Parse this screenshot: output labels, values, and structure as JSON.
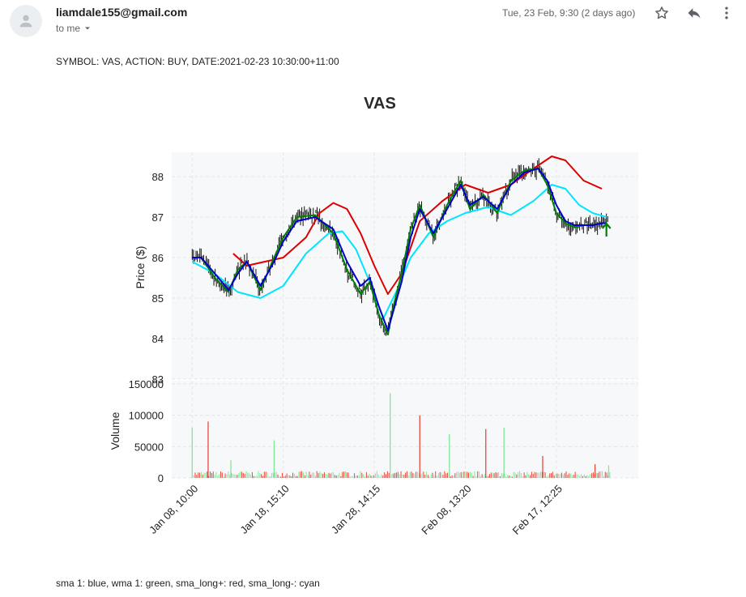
{
  "email": {
    "sender": "liamdale155@gmail.com",
    "recipient_label": "to me",
    "date": "Tue, 23 Feb, 9:30 (2 days ago)",
    "body_line": "SYMBOL: VAS, ACTION: BUY, DATE:2021-02-23 10:30:00+11:00",
    "legend_note": "sma 1: blue, wma 1: green, sma_long+: red, sma_long-: cyan"
  },
  "icons": {
    "avatar": "person-icon",
    "dropdown": "chevron-down-icon",
    "star": "star-icon",
    "reply": "reply-icon",
    "more": "more-vert-icon"
  },
  "chart_data": {
    "type": "line",
    "title": "VAS",
    "price_axis": {
      "label": "Price ($)",
      "range": [
        83,
        88.6
      ],
      "ticks": [
        83,
        84,
        85,
        86,
        87,
        88
      ]
    },
    "volume_axis": {
      "label": "Volume",
      "range": [
        0,
        155000
      ],
      "ticks": [
        0,
        50000,
        100000,
        150000
      ]
    },
    "x_ticks": [
      "Jan 08, 10:00",
      "Jan 18, 15:10",
      "Jan 28, 14:15",
      "Feb 08, 13:20",
      "Feb 17, 12:25"
    ],
    "x_tick_positions": [
      0.0,
      0.2,
      0.4,
      0.6,
      0.8
    ],
    "x_range": [
      -0.045,
      0.98
    ],
    "grid": true,
    "buy_marker": {
      "x": 0.91,
      "y": 86.6,
      "color": "#008000"
    },
    "series": [
      {
        "name": "sma 1",
        "color": "#0000cc",
        "x": [
          0.0,
          0.02,
          0.05,
          0.08,
          0.1,
          0.12,
          0.15,
          0.18,
          0.2,
          0.23,
          0.27,
          0.31,
          0.34,
          0.37,
          0.39,
          0.41,
          0.43,
          0.44,
          0.46,
          0.48,
          0.5,
          0.53,
          0.56,
          0.59,
          0.61,
          0.64,
          0.67,
          0.7,
          0.73,
          0.76,
          0.78,
          0.8,
          0.82,
          0.84,
          0.86,
          0.88,
          0.9,
          0.91
        ],
        "y": [
          86.0,
          86.0,
          85.6,
          85.2,
          85.6,
          85.9,
          85.3,
          85.9,
          86.4,
          86.9,
          87.0,
          86.7,
          85.9,
          85.3,
          85.5,
          84.8,
          84.2,
          84.6,
          85.4,
          86.5,
          87.2,
          86.6,
          87.2,
          87.8,
          87.3,
          87.5,
          87.2,
          87.8,
          88.1,
          88.2,
          87.9,
          87.3,
          86.9,
          86.8,
          86.8,
          86.8,
          86.85,
          86.85
        ]
      },
      {
        "name": "wma 1",
        "color": "#008000",
        "x": [
          0.0,
          0.02,
          0.05,
          0.08,
          0.1,
          0.12,
          0.15,
          0.18,
          0.2,
          0.23,
          0.27,
          0.31,
          0.34,
          0.37,
          0.39,
          0.41,
          0.43,
          0.44,
          0.46,
          0.48,
          0.5,
          0.53,
          0.56,
          0.59,
          0.61,
          0.64,
          0.67,
          0.7,
          0.73,
          0.76,
          0.78,
          0.8,
          0.82,
          0.84,
          0.86,
          0.88,
          0.9,
          0.91
        ],
        "y": [
          86.0,
          86.0,
          85.5,
          85.15,
          85.7,
          85.9,
          85.2,
          86.0,
          86.5,
          87.0,
          87.05,
          86.6,
          85.7,
          85.1,
          85.4,
          84.6,
          84.1,
          84.7,
          85.6,
          86.7,
          87.3,
          86.5,
          87.3,
          87.9,
          87.2,
          87.55,
          87.1,
          87.9,
          88.15,
          88.2,
          87.8,
          87.1,
          86.85,
          86.75,
          86.8,
          86.8,
          86.85,
          86.85
        ]
      },
      {
        "name": "sma_long+",
        "color": "#dd0000",
        "x": [
          0.09,
          0.12,
          0.16,
          0.2,
          0.25,
          0.28,
          0.31,
          0.34,
          0.37,
          0.4,
          0.43,
          0.46,
          0.5,
          0.55,
          0.6,
          0.65,
          0.7,
          0.75,
          0.79,
          0.82,
          0.86,
          0.9
        ],
        "y": [
          86.1,
          85.8,
          85.9,
          86.0,
          86.5,
          87.1,
          87.35,
          87.2,
          86.6,
          85.8,
          85.1,
          85.6,
          86.9,
          87.4,
          87.8,
          87.6,
          87.8,
          88.2,
          88.5,
          88.4,
          87.9,
          87.7
        ]
      },
      {
        "name": "sma_long-",
        "color": "#00e5ff",
        "x": [
          0.0,
          0.05,
          0.1,
          0.15,
          0.2,
          0.25,
          0.3,
          0.33,
          0.36,
          0.39,
          0.42,
          0.45,
          0.48,
          0.52,
          0.56,
          0.6,
          0.65,
          0.7,
          0.75,
          0.79,
          0.82,
          0.85,
          0.88,
          0.91
        ],
        "y": [
          85.9,
          85.6,
          85.15,
          85.0,
          85.3,
          86.1,
          86.6,
          86.65,
          86.2,
          85.4,
          84.5,
          85.2,
          86.0,
          86.6,
          86.9,
          87.1,
          87.25,
          87.05,
          87.4,
          87.8,
          87.7,
          87.3,
          87.1,
          87.0
        ]
      }
    ],
    "volume_spikes": [
      {
        "x": 0.0,
        "v": 80000,
        "color": "#7ee89a"
      },
      {
        "x": 0.035,
        "v": 90000,
        "color": "#e8493c"
      },
      {
        "x": 0.085,
        "v": 28000,
        "color": "#7ee89a"
      },
      {
        "x": 0.18,
        "v": 60000,
        "color": "#7ee89a"
      },
      {
        "x": 0.435,
        "v": 135000,
        "color": "#7ee89a"
      },
      {
        "x": 0.5,
        "v": 100000,
        "color": "#e8493c"
      },
      {
        "x": 0.565,
        "v": 70000,
        "color": "#7ee89a"
      },
      {
        "x": 0.645,
        "v": 78000,
        "color": "#e8493c"
      },
      {
        "x": 0.685,
        "v": 80000,
        "color": "#7ee89a"
      },
      {
        "x": 0.77,
        "v": 35000,
        "color": "#e8493c"
      },
      {
        "x": 0.885,
        "v": 22000,
        "color": "#e8493c"
      },
      {
        "x": 0.915,
        "v": 20000,
        "color": "#7ee89a"
      }
    ]
  }
}
